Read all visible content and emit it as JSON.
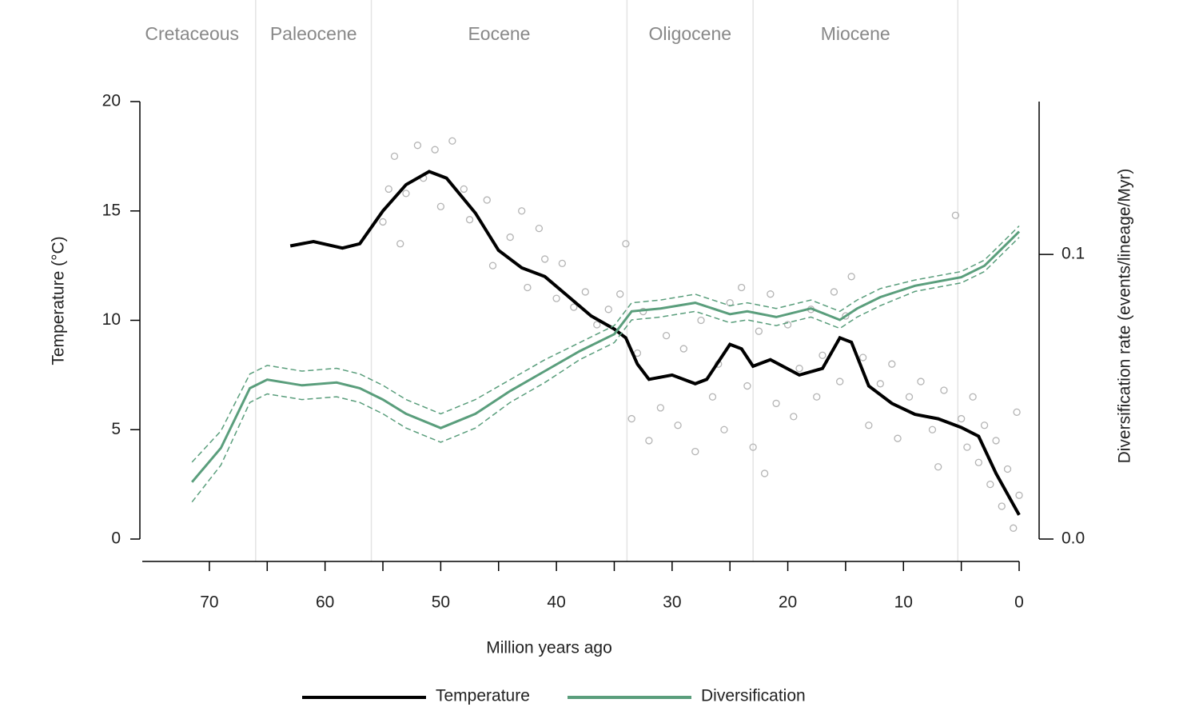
{
  "chart_data": {
    "type": "line",
    "xlabel": "Million years ago",
    "ylabel": "Temperature (°C)",
    "y2label": "Diversification rate (events/lineage/Myr)",
    "xlim": [
      75.8,
      0
    ],
    "xticks": [
      70,
      60,
      50,
      40,
      30,
      20,
      10,
      0
    ],
    "xminor_ticks": [
      65,
      55,
      45,
      35,
      25,
      15,
      5
    ],
    "ylim": [
      0,
      20
    ],
    "yticks": [
      0,
      5,
      10,
      15,
      20
    ],
    "y2lim": [
      0,
      0.1537
    ],
    "y2ticks": [
      {
        "value": 0,
        "label": "0.0"
      },
      0.1
    ],
    "epochs": [
      {
        "name": "Cretaceous",
        "start": 77,
        "end": 66
      },
      {
        "name": "Paleocene",
        "start": 66,
        "end": 56
      },
      {
        "name": "Eocene",
        "start": 56,
        "end": 33.9
      },
      {
        "name": "Oligocene",
        "start": 33.9,
        "end": 23
      },
      {
        "name": "Miocene",
        "start": 23,
        "end": 5.3
      }
    ],
    "points": {
      "color": "#b4b4b4",
      "x": [
        55,
        54.5,
        54,
        53.5,
        53,
        52,
        51.5,
        50.5,
        50,
        49,
        48,
        47.5,
        46,
        45.5,
        44,
        43,
        42.5,
        41.5,
        41,
        40,
        39.5,
        38.5,
        37.5,
        36.5,
        35.5,
        34.5,
        34,
        33.5,
        33,
        32.5,
        32,
        31,
        30.5,
        29.5,
        29,
        28,
        27.5,
        26.5,
        26,
        25.5,
        25,
        24,
        23.5,
        23,
        22.5,
        22,
        21.5,
        21,
        20,
        19.5,
        19,
        18,
        17.5,
        17,
        16,
        15.5,
        15,
        14.5,
        13.5,
        13,
        12,
        11,
        10.5,
        9.5,
        8.5,
        7.5,
        7,
        6.5,
        5.5,
        5,
        4.5,
        4,
        3.5,
        3,
        2.5,
        2,
        1.5,
        1,
        0.5,
        0.2,
        0
      ],
      "values": [
        14.5,
        16,
        17.5,
        13.5,
        15.8,
        18,
        16.5,
        17.8,
        15.2,
        18.2,
        16,
        14.6,
        15.5,
        12.5,
        13.8,
        15,
        11.5,
        14.2,
        12.8,
        11,
        12.6,
        10.6,
        11.3,
        9.8,
        10.5,
        11.2,
        13.5,
        5.5,
        8.5,
        10.4,
        4.5,
        6,
        9.3,
        5.2,
        8.7,
        4,
        10,
        6.5,
        8,
        5,
        10.8,
        11.5,
        7,
        4.2,
        9.5,
        3,
        11.2,
        6.2,
        9.8,
        5.6,
        7.8,
        10.5,
        6.5,
        8.4,
        11.3,
        7.2,
        10.2,
        12,
        8.3,
        5.2,
        7.1,
        8,
        4.6,
        6.5,
        7.2,
        5,
        3.3,
        6.8,
        14.8,
        5.5,
        4.2,
        6.5,
        3.5,
        5.2,
        2.5,
        4.5,
        1.5,
        3.2,
        0.5,
        5.8,
        2
      ]
    },
    "series": [
      {
        "name": "Temperature",
        "color": "#000000",
        "axis": "y",
        "x": [
          63,
          61,
          58.5,
          57,
          55,
          53,
          51,
          49.5,
          47,
          45,
          43,
          41,
          39,
          37,
          35,
          34,
          33,
          32,
          30,
          28,
          27,
          25,
          24,
          23,
          21.5,
          19,
          17,
          15.5,
          14.5,
          13,
          11,
          9,
          7,
          5,
          3.5,
          2,
          0
        ],
        "values": [
          13.4,
          13.6,
          13.3,
          13.5,
          15.0,
          16.2,
          16.8,
          16.5,
          14.9,
          13.2,
          12.4,
          12.0,
          11.1,
          10.2,
          9.6,
          9.2,
          8.0,
          7.3,
          7.5,
          7.1,
          7.3,
          8.9,
          8.7,
          7.9,
          8.2,
          7.5,
          7.8,
          9.2,
          9.0,
          7.0,
          6.2,
          5.7,
          5.5,
          5.1,
          4.7,
          3.0,
          1.1
        ]
      },
      {
        "name": "Diversification",
        "color": "#5a9e7c",
        "axis": "y2",
        "x": [
          71.5,
          69,
          66.5,
          65,
          62,
          59,
          57,
          55,
          53,
          50,
          47,
          44,
          41,
          38,
          35,
          33.5,
          31,
          28,
          25,
          23.5,
          21,
          18,
          15.5,
          14,
          12,
          9,
          5,
          3,
          1.5,
          0
        ],
        "values": [
          0.02,
          0.032,
          0.053,
          0.056,
          0.054,
          0.055,
          0.053,
          0.049,
          0.044,
          0.039,
          0.044,
          0.052,
          0.059,
          0.066,
          0.072,
          0.08,
          0.081,
          0.083,
          0.079,
          0.08,
          0.078,
          0.081,
          0.077,
          0.081,
          0.085,
          0.089,
          0.092,
          0.096,
          0.102,
          0.108
        ],
        "lower": [
          0.013,
          0.026,
          0.048,
          0.051,
          0.049,
          0.05,
          0.048,
          0.044,
          0.039,
          0.034,
          0.039,
          0.048,
          0.055,
          0.063,
          0.069,
          0.077,
          0.078,
          0.08,
          0.076,
          0.077,
          0.075,
          0.078,
          0.074,
          0.078,
          0.082,
          0.087,
          0.09,
          0.094,
          0.1,
          0.106
        ],
        "upper": [
          0.027,
          0.038,
          0.058,
          0.061,
          0.059,
          0.06,
          0.058,
          0.054,
          0.049,
          0.044,
          0.049,
          0.056,
          0.063,
          0.069,
          0.075,
          0.083,
          0.084,
          0.086,
          0.082,
          0.083,
          0.081,
          0.084,
          0.08,
          0.084,
          0.088,
          0.091,
          0.094,
          0.098,
          0.104,
          0.11
        ]
      }
    ]
  }
}
